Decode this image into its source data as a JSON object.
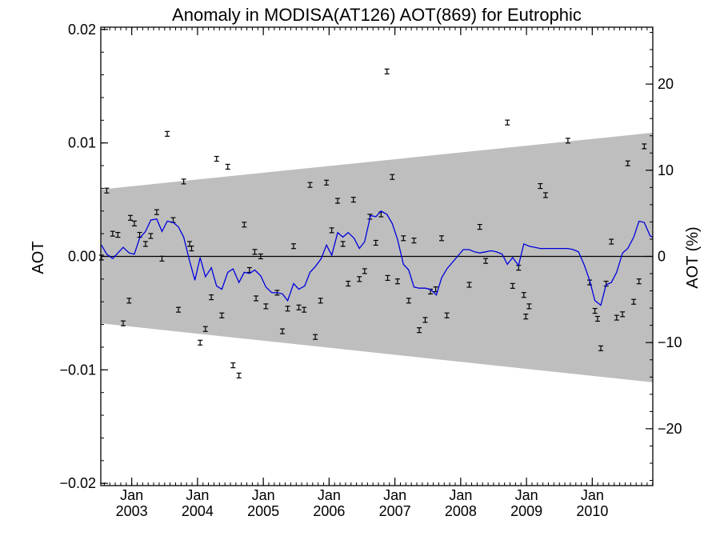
{
  "chart_data": {
    "type": "line",
    "title": "Anomaly in MODISA(AT126) AOT(869) for Eutrophic",
    "ylabel": "AOT",
    "ylabel_right": "AOT (%)",
    "xlim": [
      2002.53,
      2010.92
    ],
    "ylim": [
      -0.0202,
      0.0202
    ],
    "ylim_right": [
      -26.6,
      26.6
    ],
    "y_ticks": [
      {
        "v": 0.02,
        "label": "0.02"
      },
      {
        "v": 0.01,
        "label": "0.01"
      },
      {
        "v": 0.0,
        "label": "0.00"
      },
      {
        "v": -0.01,
        "label": "−0.01"
      },
      {
        "v": -0.02,
        "label": "−0.02"
      }
    ],
    "y_right_ticks": [
      {
        "v": 20,
        "label": "20"
      },
      {
        "v": 10,
        "label": "10"
      },
      {
        "v": 0,
        "label": "0"
      },
      {
        "v": -10,
        "label": "−10"
      },
      {
        "v": -20,
        "label": "−20"
      }
    ],
    "x_ticks": [
      {
        "v": 2003.0,
        "month": "Jan",
        "year": "2003"
      },
      {
        "v": 2004.0,
        "month": "Jan",
        "year": "2004"
      },
      {
        "v": 2005.0,
        "month": "Jan",
        "year": "2005"
      },
      {
        "v": 2006.0,
        "month": "Jan",
        "year": "2006"
      },
      {
        "v": 2007.0,
        "month": "Jan",
        "year": "2007"
      },
      {
        "v": 2008.0,
        "month": "Jan",
        "year": "2008"
      },
      {
        "v": 2009.0,
        "month": "Jan",
        "year": "2009"
      },
      {
        "v": 2010.0,
        "month": "Jan",
        "year": "2010"
      }
    ],
    "grid": false,
    "band": {
      "start": {
        "x": 2002.53,
        "upper": 0.0059,
        "lower": -0.0059
      },
      "end": {
        "x": 2010.92,
        "upper": 0.0109,
        "lower": -0.0111
      },
      "color": "#bebebe"
    },
    "zero_line": true,
    "points": [
      [
        2002.54,
        -0.0001
      ],
      [
        2002.62,
        0.0058
      ],
      [
        2002.71,
        0.002
      ],
      [
        2002.79,
        0.0019
      ],
      [
        2002.87,
        -0.0059
      ],
      [
        2002.96,
        -0.0039
      ],
      [
        2002.98,
        0.0034
      ],
      [
        2003.04,
        0.0029
      ],
      [
        2003.12,
        0.0019
      ],
      [
        2003.21,
        0.0011
      ],
      [
        2003.29,
        0.0018
      ],
      [
        2003.38,
        0.0039
      ],
      [
        2003.46,
        -0.0002
      ],
      [
        2003.54,
        0.0108
      ],
      [
        2003.63,
        0.0032
      ],
      [
        2003.71,
        -0.0047
      ],
      [
        2003.79,
        0.0066
      ],
      [
        2003.88,
        0.0011
      ],
      [
        2003.91,
        0.0007
      ],
      [
        2004.04,
        -0.0076
      ],
      [
        2004.12,
        -0.0064
      ],
      [
        2004.21,
        -0.0036
      ],
      [
        2004.29,
        0.0086
      ],
      [
        2004.37,
        -0.0052
      ],
      [
        2004.46,
        0.0079
      ],
      [
        2004.54,
        -0.0096
      ],
      [
        2004.63,
        -0.0105
      ],
      [
        2004.71,
        0.0028
      ],
      [
        2004.79,
        -0.0012
      ],
      [
        2004.87,
        0.0004
      ],
      [
        2004.89,
        -0.0037
      ],
      [
        2004.96,
        0.0
      ],
      [
        2005.04,
        -0.0044
      ],
      [
        2005.21,
        -0.0032
      ],
      [
        2005.29,
        -0.0066
      ],
      [
        2005.37,
        -0.0046
      ],
      [
        2005.46,
        0.0009
      ],
      [
        2005.54,
        -0.0045
      ],
      [
        2005.62,
        -0.0047
      ],
      [
        2005.71,
        0.0063
      ],
      [
        2005.79,
        -0.0071
      ],
      [
        2005.87,
        -0.0039
      ],
      [
        2005.96,
        0.0065
      ],
      [
        2006.04,
        0.0023
      ],
      [
        2006.13,
        0.0049
      ],
      [
        2006.21,
        0.0011
      ],
      [
        2006.29,
        -0.0024
      ],
      [
        2006.37,
        0.005
      ],
      [
        2006.46,
        -0.002
      ],
      [
        2006.54,
        -0.0013
      ],
      [
        2006.62,
        0.0035
      ],
      [
        2006.71,
        0.0012
      ],
      [
        2006.79,
        0.0037
      ],
      [
        2006.88,
        0.0163
      ],
      [
        2006.89,
        -0.0019
      ],
      [
        2006.96,
        0.007
      ],
      [
        2007.04,
        -0.0022
      ],
      [
        2007.13,
        0.0016
      ],
      [
        2007.21,
        -0.0039
      ],
      [
        2007.29,
        0.0014
      ],
      [
        2007.37,
        -0.0065
      ],
      [
        2007.46,
        -0.0056
      ],
      [
        2007.54,
        -0.0031
      ],
      [
        2007.62,
        -0.0029
      ],
      [
        2007.71,
        0.0016
      ],
      [
        2007.79,
        -0.0052
      ],
      [
        2008.13,
        -0.0025
      ],
      [
        2008.29,
        0.0026
      ],
      [
        2008.38,
        -0.0004
      ],
      [
        2008.71,
        0.0118
      ],
      [
        2008.79,
        -0.0026
      ],
      [
        2008.88,
        -0.001
      ],
      [
        2008.96,
        -0.0034
      ],
      [
        2008.99,
        -0.0053
      ],
      [
        2009.04,
        -0.0044
      ],
      [
        2009.21,
        0.0062
      ],
      [
        2009.29,
        0.0054
      ],
      [
        2009.63,
        0.0102
      ],
      [
        2009.96,
        -0.0023
      ],
      [
        2010.04,
        -0.0048
      ],
      [
        2010.08,
        -0.0055
      ],
      [
        2010.13,
        -0.0081
      ],
      [
        2010.21,
        -0.0024
      ],
      [
        2010.29,
        0.0013
      ],
      [
        2010.37,
        -0.0054
      ],
      [
        2010.46,
        -0.0051
      ],
      [
        2010.54,
        0.0082
      ],
      [
        2010.63,
        -0.004
      ],
      [
        2010.71,
        -0.0022
      ],
      [
        2010.79,
        0.0097
      ]
    ],
    "series": [
      {
        "color": "#0000dd",
        "x": [
          2002.54,
          2002.62,
          2002.71,
          2002.79,
          2002.87,
          2002.96,
          2003.04,
          2003.12,
          2003.21,
          2003.29,
          2003.38,
          2003.46,
          2003.54,
          2003.63,
          2003.71,
          2003.79,
          2003.88,
          2003.96,
          2004.04,
          2004.12,
          2004.21,
          2004.29,
          2004.37,
          2004.46,
          2004.54,
          2004.63,
          2004.71,
          2004.79,
          2004.87,
          2004.96,
          2005.04,
          2005.13,
          2005.21,
          2005.29,
          2005.37,
          2005.46,
          2005.54,
          2005.63,
          2005.71,
          2005.79,
          2005.88,
          2005.96,
          2006.04,
          2006.13,
          2006.21,
          2006.29,
          2006.38,
          2006.46,
          2006.54,
          2006.63,
          2006.71,
          2006.79,
          2006.88,
          2006.96,
          2007.04,
          2007.13,
          2007.21,
          2007.29,
          2007.37,
          2007.46,
          2007.54,
          2007.63,
          2007.71,
          2007.79,
          2008.04,
          2008.13,
          2008.21,
          2008.29,
          2008.38,
          2008.46,
          2008.54,
          2008.63,
          2008.71,
          2008.79,
          2008.88,
          2008.96,
          2009.04,
          2009.13,
          2009.21,
          2009.29,
          2009.38,
          2009.46,
          2009.54,
          2009.63,
          2009.71,
          2009.79,
          2009.88,
          2009.96,
          2010.04,
          2010.13,
          2010.21,
          2010.29,
          2010.37,
          2010.46,
          2010.54,
          2010.63,
          2010.71,
          2010.79,
          2010.88,
          2010.92
        ],
        "y": [
          0.001,
          0.0002,
          -0.0002,
          0.0003,
          0.0008,
          0.0003,
          0.0002,
          0.0016,
          0.0022,
          0.0032,
          0.0033,
          0.0022,
          0.0031,
          0.003,
          0.0026,
          0.0017,
          -0.0004,
          -0.0021,
          -0.0001,
          -0.0018,
          -0.001,
          -0.0026,
          -0.0029,
          -0.0014,
          -0.0011,
          -0.0023,
          -0.0014,
          -0.0015,
          -0.0012,
          -0.0017,
          -0.0027,
          -0.0032,
          -0.0032,
          -0.0033,
          -0.0039,
          -0.0024,
          -0.0029,
          -0.0026,
          -0.0014,
          -0.0009,
          -0.0002,
          0.001,
          0.0001,
          0.0021,
          0.0017,
          0.0021,
          0.0016,
          0.0007,
          0.0013,
          0.0036,
          0.0035,
          0.004,
          0.0037,
          0.0029,
          0.0015,
          -0.0007,
          -0.0012,
          -0.0027,
          -0.0028,
          -0.0028,
          -0.0029,
          -0.0034,
          -0.0019,
          -0.0011,
          0.0006,
          0.0006,
          0.0004,
          0.0003,
          0.0004,
          0.0005,
          0.0004,
          0.0002,
          -0.0007,
          -0.0001,
          -0.0008,
          0.0011,
          0.0009,
          0.0008,
          0.0007,
          0.0007,
          0.0007,
          0.0007,
          0.0007,
          0.0007,
          0.0006,
          0.0004,
          -0.0008,
          -0.0021,
          -0.0039,
          -0.0043,
          -0.0025,
          -0.0023,
          -0.0014,
          0.0003,
          0.0007,
          0.0017,
          0.0031,
          0.003,
          0.0018,
          0.0017
        ]
      }
    ]
  }
}
